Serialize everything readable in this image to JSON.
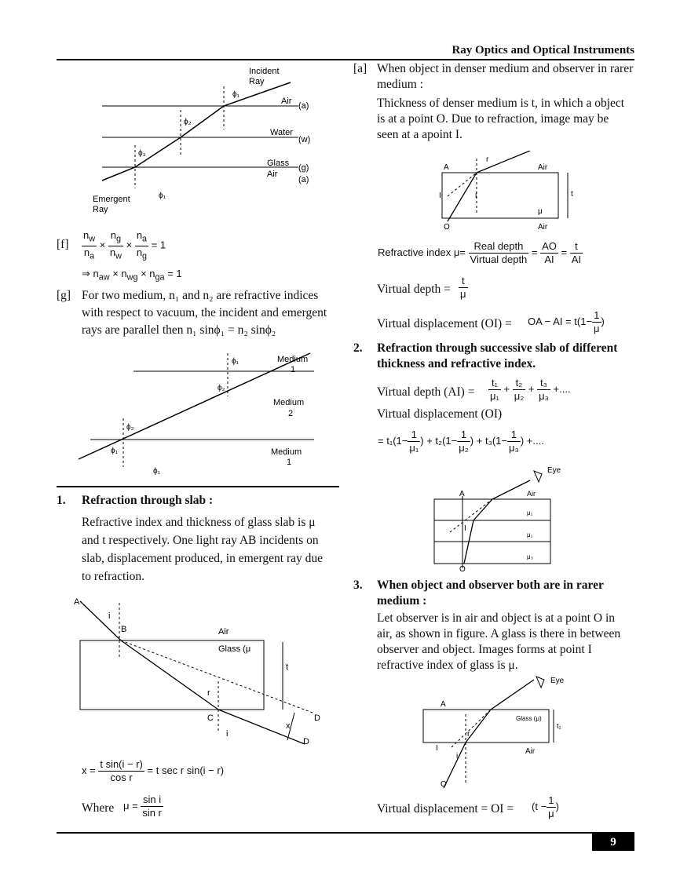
{
  "header": {
    "title": "Ray Optics and Optical Instruments"
  },
  "left": {
    "fig1": {
      "labels": [
        "Incident",
        "Ray",
        "Air",
        "(a)",
        "Water",
        "(w)",
        "Glass",
        "(g)",
        "Air",
        "(a)",
        "Emergent",
        "Ray"
      ],
      "phi1": "ϕ₁",
      "phi2": "ϕ₂",
      "phi3": "ϕ₃"
    },
    "item_f": {
      "marker": "[f]",
      "eq1_parts": [
        "n",
        "w",
        "n",
        "a",
        "×",
        "n",
        "g",
        "n",
        "w",
        "×",
        "n",
        "a",
        "n",
        "g",
        "= 1"
      ],
      "eq2": "⇒ n",
      "eq2_subs": [
        "aw",
        "wg",
        "ga"
      ],
      "eq2_tail": "= 1"
    },
    "item_g": {
      "marker": "[g]",
      "text_l1": "For two medium, n₁ and n₂ are refractive indices",
      "text_l2": "with respect to vacuum, the incident and emergent",
      "text_l3": "rays are parallel then n₁ sinϕ₁ = n₂ sinϕ₂"
    },
    "fig2": {
      "medium1": "Medium",
      "one": "1",
      "medium2": "Medium",
      "two": "2",
      "medium3": "Medium",
      "three": "1",
      "phi1": "ϕ₁",
      "phi2": "ϕ₂"
    },
    "section1": {
      "number": "1.",
      "heading": "Refraction through slab :",
      "p_l1": "Refractive index and thickness of glass slab is μ",
      "p_l2": "and t respectively.  One light ray AB incidents on",
      "p_l3": "slab, displacement produced, in emergent ray due",
      "p_l4": "to refraction."
    },
    "fig3": {
      "A": "A",
      "B": "B",
      "i": "i",
      "air": "Air",
      "glass": "Glass (μ",
      "t": "t",
      "r": "r",
      "C": "C",
      "D1": "D",
      "D2": "D",
      "x": "x",
      "i2": "i"
    },
    "formula_x": {
      "x": "x =",
      "num": "t sin(i − r)",
      "den": "cos r",
      "rhs": "= t sec r sin(i − r)"
    },
    "where": {
      "label": "Where",
      "mu": "μ =",
      "num": "sin i",
      "den": "sin r"
    }
  },
  "right": {
    "item_a": {
      "marker": "[a]",
      "l1": "When object in denser medium and observer in rarer",
      "l2": "medium :",
      "l3": "Thickness of denser medium is t, in which a object",
      "l4": "is at a point O.  Due to refraction, image may be",
      "l5": "seen at a apoint I."
    },
    "fig4": {
      "A": "A",
      "air1": "Air",
      "r": "r",
      "I": "I",
      "i": "i",
      "t": "t",
      "mu": "μ",
      "O": "O",
      "air2": "Air"
    },
    "ri": {
      "label": "Refractive index μ=",
      "f1n": "Real depth",
      "f1d": "Virtual depth",
      "f2n": "AO",
      "f2d": "AI",
      "f3n": "t",
      "f3d": "AI"
    },
    "vd": {
      "label": "Virtual depth =",
      "num": "t",
      "den": "μ"
    },
    "vdisp": {
      "label": "Virtual displacement (OI) =",
      "rhs": "OA − AI = t",
      "num": "1",
      "den": "μ",
      "one": "1−"
    },
    "section2": {
      "number": "2.",
      "heading_l1": "Refraction through successive slab of different",
      "heading_l2": "thickness and refractive index.",
      "vd_label": "Virtual depth (AI) =",
      "vd_terms": [
        [
          "t₁",
          "μ₁"
        ],
        [
          "t₂",
          "μ₂"
        ],
        [
          "t₃",
          "μ₃"
        ]
      ],
      "vd_tail": "+....",
      "vdisp_label": "Virtual displacement (OI)",
      "vdisp_terms": [
        [
          "t₁",
          "μ₁"
        ],
        [
          "t₂",
          "μ₂"
        ],
        [
          "t₃",
          "μ₃"
        ]
      ],
      "vdisp_tail": "+...."
    },
    "fig5": {
      "eye": "Eye",
      "A": "A",
      "air": "Air",
      "I": "I",
      "O": "O",
      "mu1": "μ₁",
      "mu2": "μ₁",
      "mu3": "μ₃"
    },
    "section3": {
      "number": "3.",
      "heading_l1": "When object and observer both are in rarer",
      "heading_l2": "medium :",
      "p_l1": "Let observer is in air and object is at a point O in",
      "p_l2": "air, as shown in figure.  A glass is there in between",
      "p_l3": "observer and object.  Images forms at point I",
      "p_l4": "refractive index of glass is μ."
    },
    "fig6": {
      "eye": "Eye",
      "A": "A",
      "glass": "Glass (μ)",
      "t1": "t₁",
      "r": "r",
      "I": "I",
      "i": "i",
      "air": "Air",
      "O": "O"
    },
    "final": {
      "label": "Virtual displacement = OI =",
      "t": "t −",
      "num": "1",
      "den": "μ"
    }
  },
  "page_number": "9"
}
